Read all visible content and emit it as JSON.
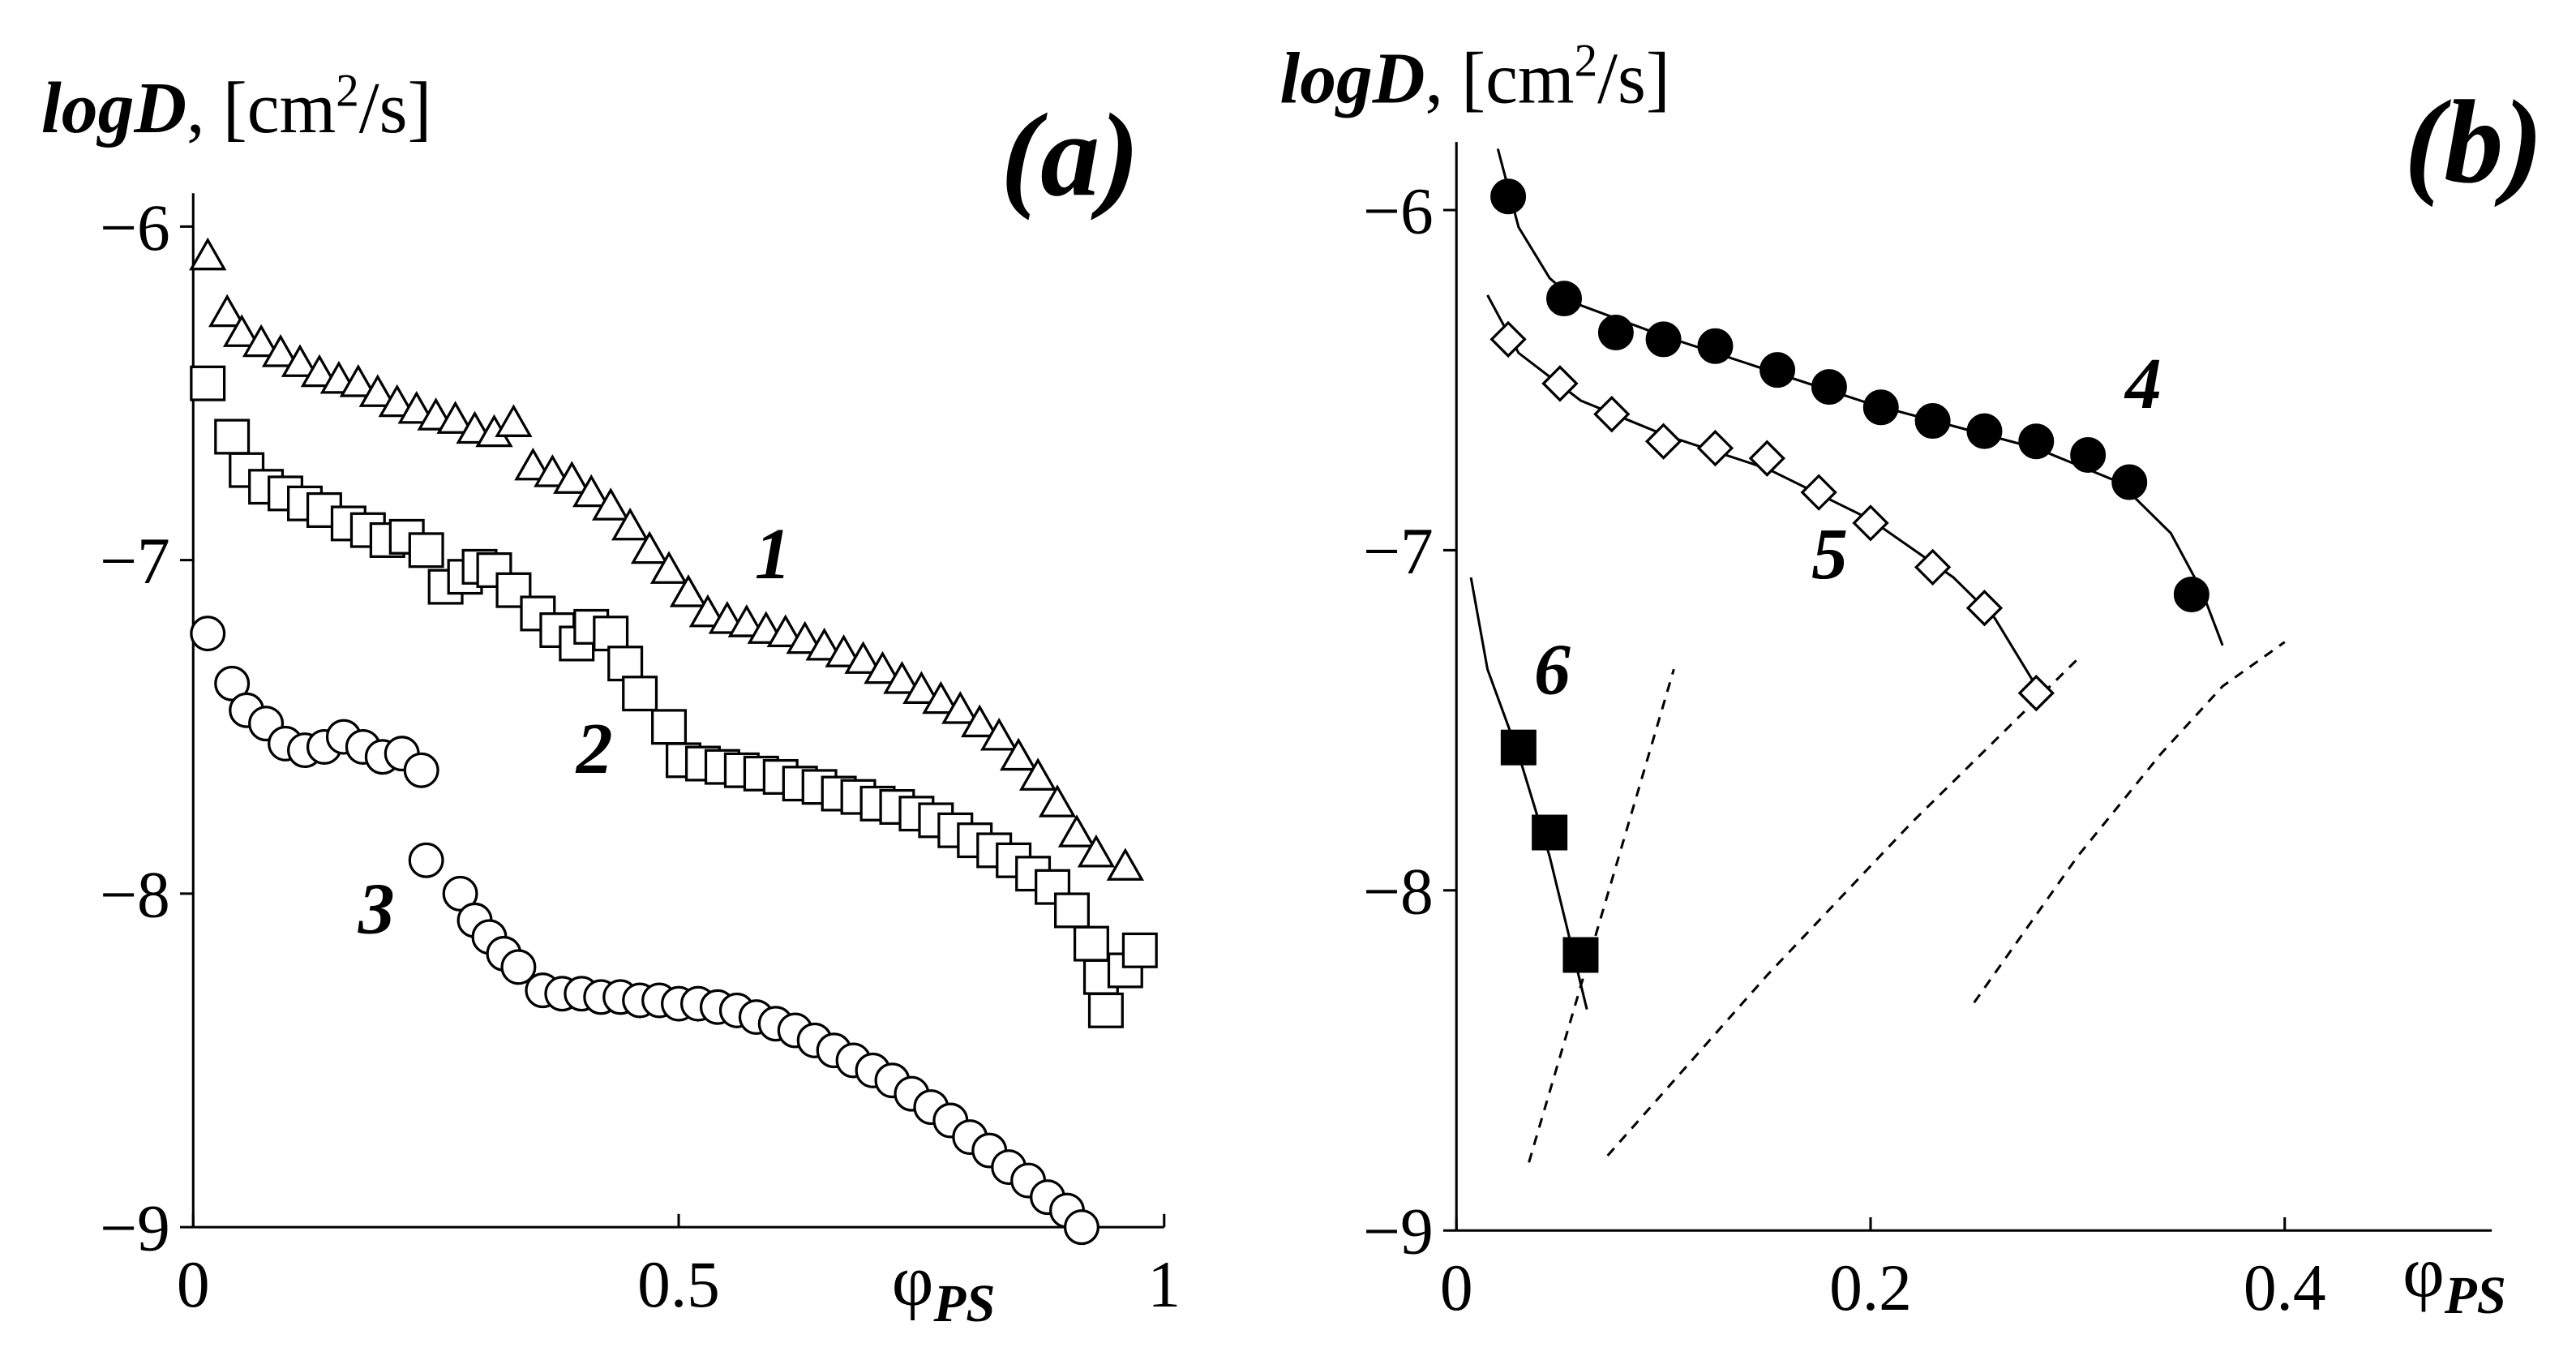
{
  "chart_data": [
    {
      "type": "scatter",
      "panel_label": "(a)",
      "ylabel_parts": [
        "logD",
        ", [cm",
        "2",
        "/s]"
      ],
      "xlabel_parts": [
        "φ",
        "PS"
      ],
      "xlim": [
        0,
        1
      ],
      "ylim": [
        -9,
        -5.9
      ],
      "xticks": [
        0,
        0.5,
        1
      ],
      "yticks": [
        {
          "value": -6,
          "label": "−6"
        },
        {
          "value": -7,
          "label": "−7"
        },
        {
          "value": -8,
          "label": "−8"
        },
        {
          "value": -9,
          "label": "−9"
        }
      ],
      "series": [
        {
          "name": "1",
          "marker": "triangle",
          "filled": false,
          "color": "#000000",
          "x": [
            0.015,
            0.035,
            0.05,
            0.07,
            0.09,
            0.11,
            0.13,
            0.15,
            0.17,
            0.19,
            0.21,
            0.23,
            0.25,
            0.27,
            0.29,
            0.31,
            0.33,
            0.35,
            0.37,
            0.39,
            0.41,
            0.43,
            0.45,
            0.47,
            0.49,
            0.51,
            0.53,
            0.55,
            0.57,
            0.59,
            0.61,
            0.63,
            0.65,
            0.67,
            0.69,
            0.71,
            0.73,
            0.75,
            0.77,
            0.79,
            0.81,
            0.83,
            0.85,
            0.87,
            0.89,
            0.91,
            0.93,
            0.96
          ],
          "values": [
            -6.09,
            -6.26,
            -6.32,
            -6.35,
            -6.38,
            -6.41,
            -6.44,
            -6.46,
            -6.47,
            -6.5,
            -6.53,
            -6.55,
            -6.57,
            -6.58,
            -6.61,
            -6.62,
            -6.59,
            -6.72,
            -6.74,
            -6.76,
            -6.8,
            -6.84,
            -6.9,
            -6.97,
            -7.03,
            -7.1,
            -7.16,
            -7.18,
            -7.19,
            -7.21,
            -7.22,
            -7.24,
            -7.26,
            -7.28,
            -7.3,
            -7.33,
            -7.36,
            -7.39,
            -7.42,
            -7.45,
            -7.49,
            -7.53,
            -7.59,
            -7.65,
            -7.73,
            -7.82,
            -7.88,
            -7.92
          ]
        },
        {
          "name": "2",
          "marker": "square",
          "filled": false,
          "color": "#000000",
          "x": [
            0.015,
            0.04,
            0.055,
            0.075,
            0.095,
            0.115,
            0.135,
            0.16,
            0.18,
            0.2,
            0.22,
            0.24,
            0.26,
            0.28,
            0.295,
            0.31,
            0.33,
            0.355,
            0.375,
            0.395,
            0.41,
            0.43,
            0.445,
            0.46,
            0.49,
            0.505,
            0.525,
            0.545,
            0.565,
            0.585,
            0.605,
            0.625,
            0.645,
            0.665,
            0.685,
            0.705,
            0.725,
            0.745,
            0.765,
            0.785,
            0.805,
            0.825,
            0.845,
            0.865,
            0.885,
            0.905,
            0.925,
            0.935,
            0.94,
            0.96,
            0.975
          ],
          "values": [
            -6.47,
            -6.63,
            -6.73,
            -6.78,
            -6.8,
            -6.83,
            -6.85,
            -6.89,
            -6.91,
            -6.94,
            -6.93,
            -6.97,
            -7.08,
            -7.05,
            -7.02,
            -7.03,
            -7.09,
            -7.16,
            -7.21,
            -7.25,
            -7.2,
            -7.22,
            -7.31,
            -7.4,
            -7.5,
            -7.6,
            -7.61,
            -7.62,
            -7.63,
            -7.64,
            -7.65,
            -7.67,
            -7.68,
            -7.7,
            -7.71,
            -7.73,
            -7.74,
            -7.76,
            -7.78,
            -7.81,
            -7.84,
            -7.87,
            -7.9,
            -7.94,
            -7.98,
            -8.05,
            -8.15,
            -8.25,
            -8.35,
            -8.23,
            -8.17
          ]
        },
        {
          "name": "3",
          "marker": "circle",
          "filled": false,
          "color": "#000000",
          "x": [
            0.015,
            0.04,
            0.055,
            0.075,
            0.095,
            0.115,
            0.135,
            0.155,
            0.175,
            0.195,
            0.215,
            0.235,
            0.24,
            0.275,
            0.29,
            0.305,
            0.32,
            0.335,
            0.36,
            0.38,
            0.4,
            0.42,
            0.44,
            0.46,
            0.48,
            0.5,
            0.52,
            0.54,
            0.56,
            0.58,
            0.6,
            0.62,
            0.64,
            0.66,
            0.68,
            0.7,
            0.72,
            0.74,
            0.76,
            0.78,
            0.8,
            0.82,
            0.84,
            0.86,
            0.88,
            0.9,
            0.915
          ],
          "values": [
            -7.22,
            -7.37,
            -7.45,
            -7.49,
            -7.55,
            -7.57,
            -7.56,
            -7.53,
            -7.56,
            -7.59,
            -7.58,
            -7.63,
            -7.9,
            -8.0,
            -8.08,
            -8.13,
            -8.18,
            -8.22,
            -8.29,
            -8.3,
            -8.3,
            -8.31,
            -8.31,
            -8.32,
            -8.32,
            -8.33,
            -8.33,
            -8.34,
            -8.35,
            -8.37,
            -8.39,
            -8.41,
            -8.44,
            -8.47,
            -8.5,
            -8.53,
            -8.56,
            -8.6,
            -8.64,
            -8.68,
            -8.73,
            -8.77,
            -8.82,
            -8.86,
            -8.91,
            -8.95,
            -9.0
          ]
        }
      ]
    },
    {
      "type": "scatter",
      "panel_label": "(b)",
      "ylabel_parts": [
        "logD",
        ", [cm",
        "2",
        "/s]"
      ],
      "xlabel_parts": [
        "φ",
        "PS"
      ],
      "xlim": [
        0,
        0.5
      ],
      "ylim": [
        -9,
        -5.8
      ],
      "xticks": [
        0,
        0.2,
        0.4
      ],
      "yticks": [
        {
          "value": -6,
          "label": "−6"
        },
        {
          "value": -7,
          "label": "−7"
        },
        {
          "value": -8,
          "label": "−8"
        },
        {
          "value": -9,
          "label": "−9"
        }
      ],
      "series": [
        {
          "name": "4",
          "marker": "circle",
          "filled": true,
          "color": "#000000",
          "x": [
            0.025,
            0.052,
            0.077,
            0.1,
            0.125,
            0.155,
            0.18,
            0.205,
            0.23,
            0.255,
            0.28,
            0.305,
            0.325,
            0.355
          ],
          "values": [
            -5.96,
            -6.26,
            -6.36,
            -6.38,
            -6.4,
            -6.47,
            -6.52,
            -6.58,
            -6.62,
            -6.65,
            -6.68,
            -6.72,
            -6.8,
            -7.13
          ]
        },
        {
          "name": "5",
          "marker": "diamond",
          "filled": false,
          "color": "#000000",
          "x": [
            0.025,
            0.05,
            0.075,
            0.1,
            0.125,
            0.15,
            0.175,
            0.2,
            0.23,
            0.255,
            0.28
          ],
          "values": [
            -6.38,
            -6.51,
            -6.6,
            -6.68,
            -6.7,
            -6.73,
            -6.83,
            -6.92,
            -7.05,
            -7.17,
            -7.42
          ]
        },
        {
          "name": "6",
          "marker": "square",
          "filled": true,
          "color": "#000000",
          "x": [
            0.03,
            0.045,
            0.06
          ],
          "values": [
            -7.58,
            -7.83,
            -8.19
          ]
        }
      ],
      "curves": [
        {
          "style": "solid",
          "x": [
            0.02,
            0.03,
            0.045,
            0.06,
            0.1,
            0.2,
            0.28,
            0.32,
            0.345,
            0.36,
            0.37
          ],
          "y": [
            -5.82,
            -6.05,
            -6.2,
            -6.28,
            -6.37,
            -6.57,
            -6.7,
            -6.8,
            -6.95,
            -7.12,
            -7.28
          ]
        },
        {
          "style": "solid",
          "x": [
            0.015,
            0.03,
            0.06,
            0.1,
            0.15,
            0.2,
            0.24,
            0.26,
            0.28
          ],
          "y": [
            -6.25,
            -6.42,
            -6.56,
            -6.66,
            -6.76,
            -6.91,
            -7.08,
            -7.2,
            -7.4
          ]
        },
        {
          "style": "solid",
          "x": [
            0.007,
            0.015,
            0.03,
            0.045,
            0.063
          ],
          "y": [
            -7.08,
            -7.35,
            -7.6,
            -7.9,
            -8.35
          ]
        },
        {
          "style": "dashed",
          "x": [
            0.035,
            0.105
          ],
          "y": [
            -8.8,
            -7.35
          ]
        },
        {
          "style": "dashed",
          "x": [
            0.073,
            0.15,
            0.22,
            0.27,
            0.3
          ],
          "y": [
            -8.78,
            -8.25,
            -7.8,
            -7.5,
            -7.32
          ]
        },
        {
          "style": "dashed",
          "x": [
            0.25,
            0.3,
            0.34,
            0.37,
            0.4
          ],
          "y": [
            -8.33,
            -7.9,
            -7.6,
            -7.4,
            -7.27
          ]
        }
      ]
    }
  ]
}
